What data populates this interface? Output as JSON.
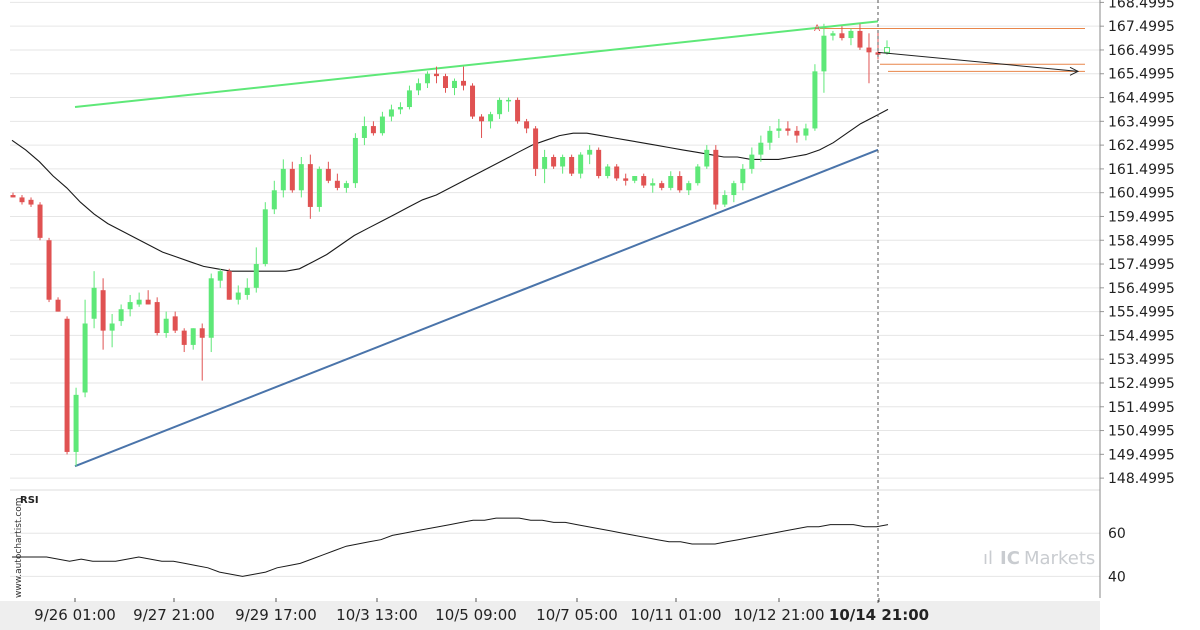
{
  "chart_data": [
    {
      "type": "candlestick",
      "title": "",
      "ylim": [
        148.0,
        168.6
      ],
      "y_ticks": [
        "168.4995",
        "167.4995",
        "166.4995",
        "165.4995",
        "164.4995",
        "163.4995",
        "162.4995",
        "161.4995",
        "160.4995",
        "159.4995",
        "158.4995",
        "157.4995",
        "156.4995",
        "155.4995",
        "154.4995",
        "153.4995",
        "152.4995",
        "151.4995",
        "150.4995",
        "149.4995",
        "148.4995"
      ],
      "x_ticks": [
        {
          "label": "9/26 01:00",
          "bold": false
        },
        {
          "label": "9/27 21:00",
          "bold": false
        },
        {
          "label": "9/29 17:00",
          "bold": false
        },
        {
          "label": "10/3 13:00",
          "bold": false
        },
        {
          "label": "10/5 09:00",
          "bold": false
        },
        {
          "label": "10/7 05:00",
          "bold": false
        },
        {
          "label": "10/11 01:00",
          "bold": false
        },
        {
          "label": "10/12 21:00",
          "bold": false
        },
        {
          "label": "10/14 21:00",
          "bold": true
        }
      ],
      "candles": [
        {
          "o": 160.4,
          "h": 160.5,
          "l": 160.3,
          "c": 160.3
        },
        {
          "o": 160.3,
          "h": 160.4,
          "l": 160.0,
          "c": 160.1
        },
        {
          "o": 160.2,
          "h": 160.3,
          "l": 159.9,
          "c": 160.0
        },
        {
          "o": 160.0,
          "h": 160.1,
          "l": 158.5,
          "c": 158.6
        },
        {
          "o": 158.5,
          "h": 158.6,
          "l": 155.9,
          "c": 156.0
        },
        {
          "o": 156.0,
          "h": 156.1,
          "l": 155.5,
          "c": 155.5
        },
        {
          "o": 155.2,
          "h": 155.3,
          "l": 149.5,
          "c": 149.6
        },
        {
          "o": 149.6,
          "h": 152.3,
          "l": 149.0,
          "c": 152.0
        },
        {
          "o": 152.1,
          "h": 156.0,
          "l": 151.9,
          "c": 155.0
        },
        {
          "o": 155.2,
          "h": 157.2,
          "l": 154.8,
          "c": 156.5
        },
        {
          "o": 156.4,
          "h": 156.9,
          "l": 153.9,
          "c": 154.7
        },
        {
          "o": 154.7,
          "h": 155.4,
          "l": 154.0,
          "c": 155.0
        },
        {
          "o": 155.1,
          "h": 155.8,
          "l": 154.9,
          "c": 155.6
        },
        {
          "o": 155.6,
          "h": 156.2,
          "l": 155.3,
          "c": 155.9
        },
        {
          "o": 155.8,
          "h": 156.3,
          "l": 155.7,
          "c": 156.0
        },
        {
          "o": 156.0,
          "h": 156.4,
          "l": 155.8,
          "c": 155.8
        },
        {
          "o": 155.9,
          "h": 156.1,
          "l": 154.5,
          "c": 154.6
        },
        {
          "o": 154.6,
          "h": 155.5,
          "l": 154.4,
          "c": 155.2
        },
        {
          "o": 155.3,
          "h": 155.5,
          "l": 154.6,
          "c": 154.7
        },
        {
          "o": 154.7,
          "h": 154.8,
          "l": 153.8,
          "c": 154.1
        },
        {
          "o": 154.1,
          "h": 154.8,
          "l": 153.9,
          "c": 154.8
        },
        {
          "o": 154.8,
          "h": 155.0,
          "l": 152.6,
          "c": 154.4
        },
        {
          "o": 154.4,
          "h": 157.1,
          "l": 153.8,
          "c": 156.9
        },
        {
          "o": 156.8,
          "h": 157.3,
          "l": 156.5,
          "c": 157.2
        },
        {
          "o": 157.2,
          "h": 157.3,
          "l": 156.0,
          "c": 156.0
        },
        {
          "o": 156.0,
          "h": 156.6,
          "l": 155.8,
          "c": 156.3
        },
        {
          "o": 156.2,
          "h": 156.9,
          "l": 156.0,
          "c": 156.5
        },
        {
          "o": 156.5,
          "h": 158.2,
          "l": 156.3,
          "c": 157.5
        },
        {
          "o": 157.5,
          "h": 160.1,
          "l": 157.4,
          "c": 159.8
        },
        {
          "o": 159.8,
          "h": 161.0,
          "l": 159.6,
          "c": 160.6
        },
        {
          "o": 160.6,
          "h": 161.9,
          "l": 160.3,
          "c": 161.5
        },
        {
          "o": 161.5,
          "h": 161.8,
          "l": 160.5,
          "c": 160.6
        },
        {
          "o": 160.6,
          "h": 162.0,
          "l": 160.3,
          "c": 161.7
        },
        {
          "o": 161.7,
          "h": 162.1,
          "l": 159.4,
          "c": 159.9
        },
        {
          "o": 159.9,
          "h": 161.6,
          "l": 159.7,
          "c": 161.5
        },
        {
          "o": 161.5,
          "h": 161.8,
          "l": 160.9,
          "c": 161.0
        },
        {
          "o": 161.0,
          "h": 161.3,
          "l": 160.6,
          "c": 160.7
        },
        {
          "o": 160.7,
          "h": 161.0,
          "l": 160.5,
          "c": 160.9
        },
        {
          "o": 160.9,
          "h": 163.0,
          "l": 160.7,
          "c": 162.8
        },
        {
          "o": 162.8,
          "h": 163.7,
          "l": 162.5,
          "c": 163.3
        },
        {
          "o": 163.3,
          "h": 163.5,
          "l": 162.9,
          "c": 163.0
        },
        {
          "o": 163.0,
          "h": 163.9,
          "l": 162.9,
          "c": 163.7
        },
        {
          "o": 163.7,
          "h": 164.2,
          "l": 163.5,
          "c": 164.0
        },
        {
          "o": 164.0,
          "h": 164.3,
          "l": 163.8,
          "c": 164.1
        },
        {
          "o": 164.1,
          "h": 165.0,
          "l": 164.0,
          "c": 164.8
        },
        {
          "o": 164.8,
          "h": 165.3,
          "l": 164.6,
          "c": 165.1
        },
        {
          "o": 165.1,
          "h": 165.6,
          "l": 164.9,
          "c": 165.5
        },
        {
          "o": 165.5,
          "h": 165.8,
          "l": 165.1,
          "c": 165.4
        },
        {
          "o": 165.4,
          "h": 165.5,
          "l": 164.7,
          "c": 164.9
        },
        {
          "o": 164.9,
          "h": 165.3,
          "l": 164.6,
          "c": 165.2
        },
        {
          "o": 165.2,
          "h": 165.8,
          "l": 164.8,
          "c": 165.0
        },
        {
          "o": 165.0,
          "h": 165.1,
          "l": 163.6,
          "c": 163.7
        },
        {
          "o": 163.7,
          "h": 163.8,
          "l": 162.8,
          "c": 163.5
        },
        {
          "o": 163.5,
          "h": 163.9,
          "l": 163.2,
          "c": 163.8
        },
        {
          "o": 163.8,
          "h": 164.5,
          "l": 163.6,
          "c": 164.4
        },
        {
          "o": 164.4,
          "h": 164.5,
          "l": 163.9,
          "c": 164.4
        },
        {
          "o": 164.4,
          "h": 164.5,
          "l": 163.4,
          "c": 163.5
        },
        {
          "o": 163.5,
          "h": 163.6,
          "l": 163.0,
          "c": 163.2
        },
        {
          "o": 163.2,
          "h": 163.3,
          "l": 161.2,
          "c": 161.5
        },
        {
          "o": 161.5,
          "h": 162.3,
          "l": 160.9,
          "c": 162.0
        },
        {
          "o": 162.0,
          "h": 162.1,
          "l": 161.5,
          "c": 161.6
        },
        {
          "o": 161.6,
          "h": 162.1,
          "l": 161.3,
          "c": 162.0
        },
        {
          "o": 162.0,
          "h": 162.1,
          "l": 161.2,
          "c": 161.3
        },
        {
          "o": 161.3,
          "h": 162.2,
          "l": 161.1,
          "c": 162.1
        },
        {
          "o": 162.1,
          "h": 162.5,
          "l": 161.7,
          "c": 162.3
        },
        {
          "o": 162.3,
          "h": 162.4,
          "l": 161.1,
          "c": 161.2
        },
        {
          "o": 161.2,
          "h": 161.7,
          "l": 161.1,
          "c": 161.6
        },
        {
          "o": 161.6,
          "h": 161.7,
          "l": 161.0,
          "c": 161.1
        },
        {
          "o": 161.1,
          "h": 161.3,
          "l": 160.8,
          "c": 161.0
        },
        {
          "o": 161.0,
          "h": 161.2,
          "l": 160.9,
          "c": 161.2
        },
        {
          "o": 161.2,
          "h": 161.3,
          "l": 160.7,
          "c": 160.8
        },
        {
          "o": 160.8,
          "h": 161.1,
          "l": 160.5,
          "c": 160.9
        },
        {
          "o": 160.9,
          "h": 161.0,
          "l": 160.6,
          "c": 160.7
        },
        {
          "o": 160.7,
          "h": 161.4,
          "l": 160.6,
          "c": 161.2
        },
        {
          "o": 161.2,
          "h": 161.4,
          "l": 160.5,
          "c": 160.6
        },
        {
          "o": 160.6,
          "h": 161.0,
          "l": 160.4,
          "c": 160.9
        },
        {
          "o": 160.9,
          "h": 161.7,
          "l": 160.8,
          "c": 161.6
        },
        {
          "o": 161.6,
          "h": 162.5,
          "l": 161.5,
          "c": 162.3
        },
        {
          "o": 162.3,
          "h": 162.5,
          "l": 159.8,
          "c": 160.0
        },
        {
          "o": 160.0,
          "h": 160.6,
          "l": 159.9,
          "c": 160.4
        },
        {
          "o": 160.4,
          "h": 161.0,
          "l": 160.1,
          "c": 160.9
        },
        {
          "o": 160.9,
          "h": 161.7,
          "l": 160.6,
          "c": 161.5
        },
        {
          "o": 161.5,
          "h": 162.4,
          "l": 161.3,
          "c": 162.1
        },
        {
          "o": 162.1,
          "h": 162.9,
          "l": 161.8,
          "c": 162.6
        },
        {
          "o": 162.6,
          "h": 163.3,
          "l": 162.3,
          "c": 163.1
        },
        {
          "o": 163.1,
          "h": 163.6,
          "l": 162.8,
          "c": 163.2
        },
        {
          "o": 163.2,
          "h": 163.5,
          "l": 162.9,
          "c": 163.1
        },
        {
          "o": 163.1,
          "h": 163.3,
          "l": 162.6,
          "c": 162.9
        },
        {
          "o": 162.9,
          "h": 163.4,
          "l": 162.7,
          "c": 163.2
        },
        {
          "o": 163.2,
          "h": 165.9,
          "l": 163.1,
          "c": 165.6
        },
        {
          "o": 165.6,
          "h": 167.6,
          "l": 164.7,
          "c": 167.1
        },
        {
          "o": 167.1,
          "h": 167.3,
          "l": 166.9,
          "c": 167.2
        },
        {
          "o": 167.2,
          "h": 167.5,
          "l": 166.9,
          "c": 167.0
        },
        {
          "o": 167.0,
          "h": 167.4,
          "l": 166.7,
          "c": 167.3
        },
        {
          "o": 167.3,
          "h": 167.6,
          "l": 166.5,
          "c": 166.6
        },
        {
          "o": 166.6,
          "h": 167.2,
          "l": 165.1,
          "c": 166.4
        },
        {
          "o": 166.4,
          "h": 167.3,
          "l": 166.1,
          "c": 166.3
        },
        {
          "o": 166.4,
          "h": 166.9,
          "l": 166.3,
          "c": 166.6
        }
      ],
      "moving_average": [
        162.7,
        162.3,
        161.8,
        161.2,
        160.7,
        160.1,
        159.6,
        159.2,
        158.9,
        158.6,
        158.3,
        158.0,
        157.8,
        157.6,
        157.4,
        157.3,
        157.2,
        157.2,
        157.2,
        157.2,
        157.2,
        157.3,
        157.6,
        157.9,
        158.3,
        158.7,
        159.0,
        159.3,
        159.6,
        159.9,
        160.2,
        160.4,
        160.7,
        161.0,
        161.3,
        161.6,
        161.9,
        162.2,
        162.5,
        162.7,
        162.9,
        163.0,
        163.0,
        162.9,
        162.8,
        162.7,
        162.6,
        162.5,
        162.4,
        162.3,
        162.2,
        162.1,
        162.0,
        162.0,
        161.9,
        161.9,
        161.9,
        162.0,
        162.1,
        162.3,
        162.6,
        163.0,
        163.4,
        163.7,
        164.0
      ],
      "trendlines": [
        {
          "name": "resistance",
          "color": "#5ee878",
          "from": [
            0.0,
            164.1
          ],
          "to": [
            1.0,
            167.7
          ]
        },
        {
          "name": "support",
          "color": "#4a74aa",
          "from": [
            0.0,
            149.0
          ],
          "to": [
            1.0,
            162.3
          ]
        }
      ],
      "hlines": [
        {
          "value": 167.4,
          "color": "#e8864a"
        },
        {
          "value": 165.9,
          "color": "#e8864a"
        },
        {
          "value": 165.6,
          "color": "#e8864a"
        }
      ],
      "forecast": {
        "from": 166.4,
        "to": 165.6
      },
      "colors": {
        "up": "#5ee878",
        "down": "#e05252",
        "ma": "#1a1a1a",
        "grid": "#e6e6e6",
        "axis": "#999999"
      }
    },
    {
      "type": "line",
      "title": "RSI",
      "ylim": [
        30,
        80
      ],
      "y_ticks": [
        "60",
        "40"
      ],
      "values": [
        49,
        49,
        49,
        49,
        48,
        47,
        48,
        47,
        47,
        47,
        48,
        49,
        48,
        47,
        47,
        46,
        45,
        44,
        42,
        41,
        40,
        41,
        42,
        44,
        45,
        46,
        48,
        50,
        52,
        54,
        55,
        56,
        57,
        59,
        60,
        61,
        62,
        63,
        64,
        65,
        66,
        66,
        67,
        67,
        67,
        66,
        66,
        65,
        65,
        64,
        63,
        62,
        61,
        60,
        59,
        58,
        57,
        56,
        56,
        55,
        55,
        55,
        56,
        57,
        58,
        59,
        60,
        61,
        62,
        63,
        63,
        64,
        64,
        64,
        63,
        63,
        64
      ],
      "labels_rsi": "RSI"
    }
  ],
  "watermark": "www.autochartist.com",
  "brand": {
    "pre": "ıl",
    "ic": "IC",
    "name": "Markets"
  }
}
